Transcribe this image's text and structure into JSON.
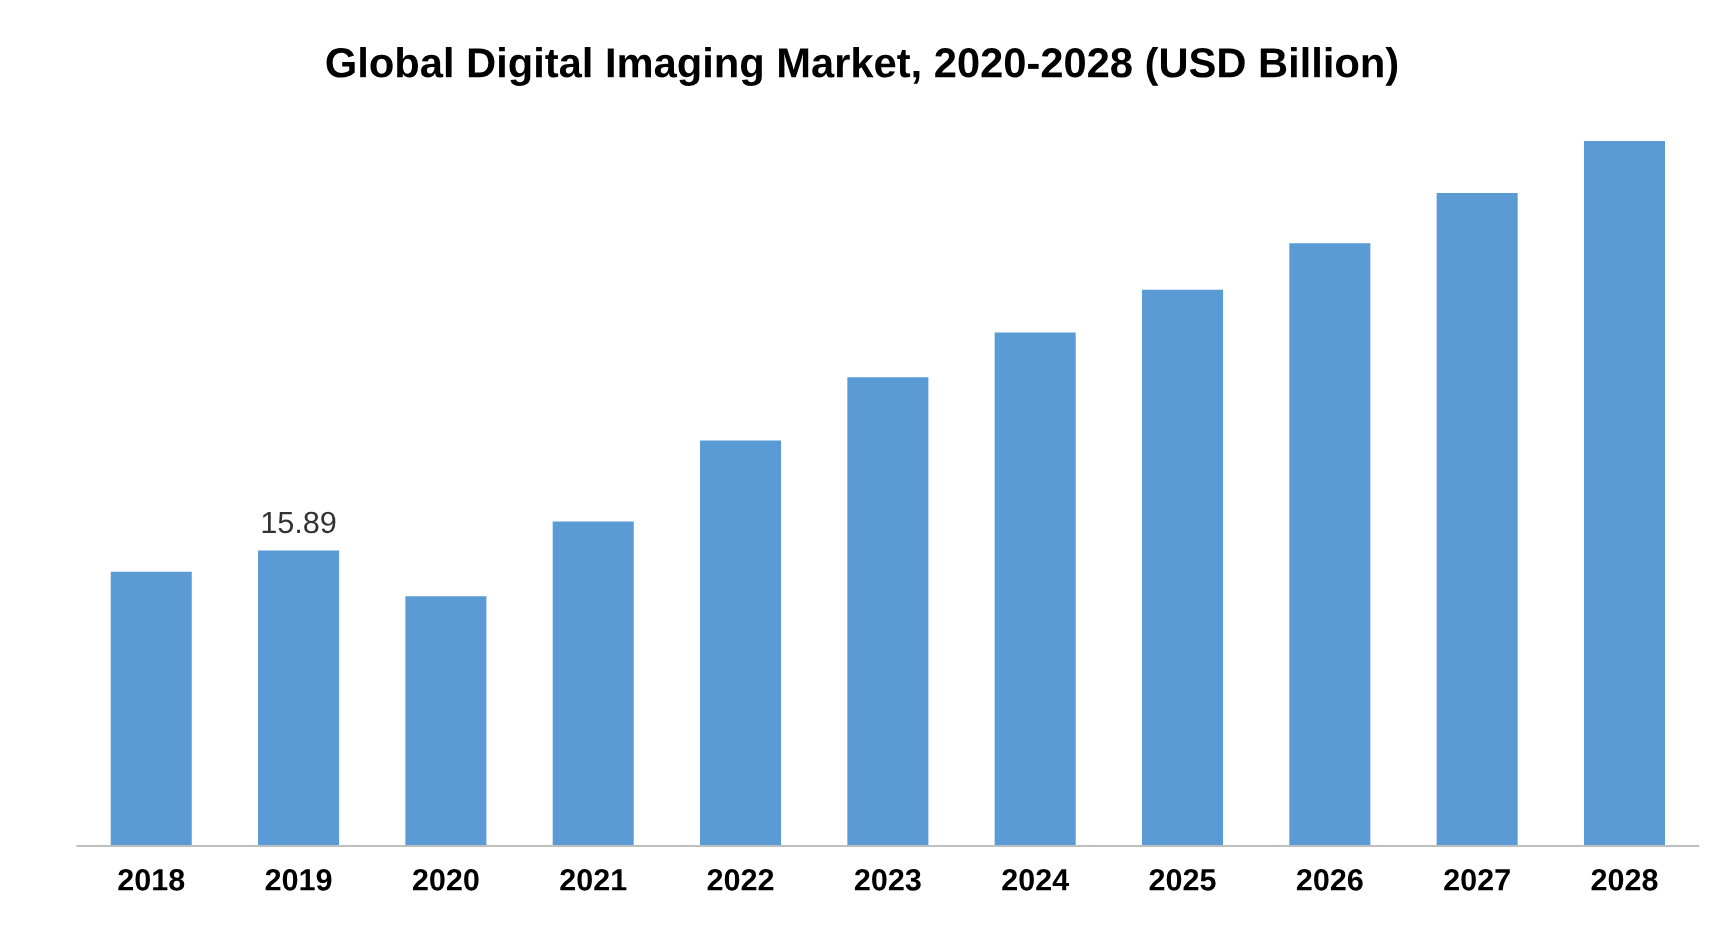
{
  "chart_data": {
    "type": "bar",
    "title": "Global Digital Imaging Market, 2020-2028 (USD Billion)",
    "categories": [
      "2018",
      "2019",
      "2020",
      "2021",
      "2022",
      "2023",
      "2024",
      "2025",
      "2026",
      "2027",
      "2028"
    ],
    "series": [
      {
        "color": "#5b9bd5",
        "values": [
          14.75,
          15.89,
          13.42,
          17.44,
          21.8,
          25.2,
          27.6,
          29.9,
          32.4,
          35.1,
          37.9
        ],
        "value_labels": [
          null,
          "15.89",
          null,
          null,
          null,
          null,
          null,
          null,
          null,
          null,
          null
        ]
      }
    ],
    "ylim": [
      0,
      37.9
    ],
    "tick_labels": "x",
    "grid": false,
    "legend": false
  }
}
